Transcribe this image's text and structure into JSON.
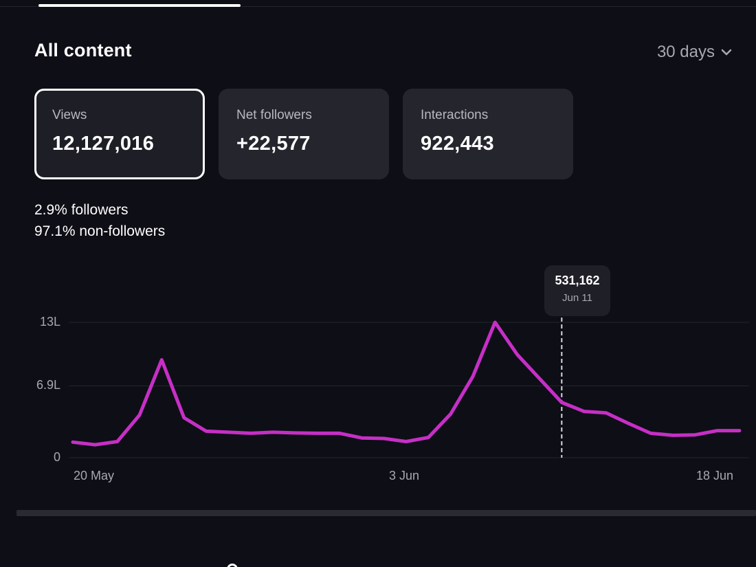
{
  "header": {
    "section_title": "All content",
    "range_label": "30 days",
    "range_icon": "chevron-down-icon"
  },
  "cards": [
    {
      "label": "Views",
      "value": "12,127,016",
      "selected": true
    },
    {
      "label": "Net followers",
      "value": "+22,577",
      "selected": false
    },
    {
      "label": "Interactions",
      "value": "922,443",
      "selected": false
    }
  ],
  "breakdown": {
    "followers": "2.9% followers",
    "non_followers": "97.1% non-followers"
  },
  "tooltip": {
    "value": "531,162",
    "date": "Jun 11"
  },
  "colors": {
    "line": "#c62fc6",
    "background": "#0e0e16",
    "card": "#25252e"
  },
  "chart_data": {
    "type": "line",
    "x_tick_labels": [
      "20 May",
      "3 Jun",
      "18 Jun"
    ],
    "y_tick_labels": [
      "0",
      "6.9L",
      "13L"
    ],
    "y_tick_values": [
      0,
      690000,
      1300000
    ],
    "ylim": [
      0,
      1300000
    ],
    "grid": true,
    "x": [
      "May 20",
      "May 21",
      "May 22",
      "May 23",
      "May 24",
      "May 25",
      "May 26",
      "May 27",
      "May 28",
      "May 29",
      "May 30",
      "May 31",
      "Jun 1",
      "Jun 2",
      "Jun 3",
      "Jun 4",
      "Jun 5",
      "Jun 6",
      "Jun 7",
      "Jun 8",
      "Jun 9",
      "Jun 10",
      "Jun 11",
      "Jun 12",
      "Jun 13",
      "Jun 14",
      "Jun 15",
      "Jun 16",
      "Jun 17",
      "Jun 18",
      "Jun 19"
    ],
    "series": [
      {
        "values": [
          150000,
          125000,
          155000,
          410000,
          940000,
          385000,
          255000,
          245000,
          235000,
          245000,
          238000,
          235000,
          235000,
          190000,
          185000,
          155000,
          195000,
          420000,
          780000,
          1300000,
          990000,
          760000,
          531162,
          445000,
          430000,
          330000,
          235000,
          215000,
          220000,
          260000,
          260000
        ]
      }
    ],
    "highlight_index": 22
  }
}
